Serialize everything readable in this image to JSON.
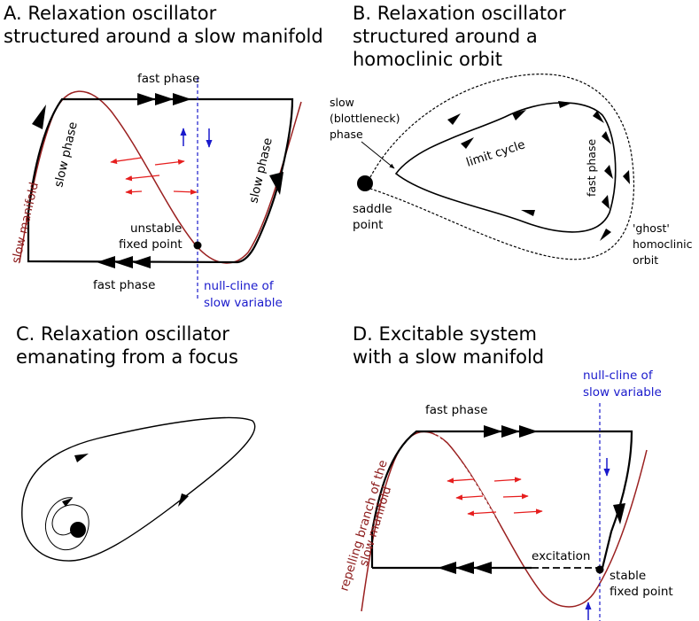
{
  "colors": {
    "manifold": "#9a2020",
    "nullcline": "#1a1acc",
    "flow_arrow": "#e61e1e",
    "trajectory": "#000000"
  },
  "panelA": {
    "title_line1": "A. Relaxation oscillator",
    "title_line2": "structured around a slow manifold",
    "fast_phase_top": "fast phase",
    "fast_phase_bottom": "fast phase",
    "slow_phase_left": "slow phase",
    "slow_phase_right": "slow phase",
    "slow_manifold": "slow manifold",
    "unstable_line1": "unstable",
    "unstable_line2": "fixed point",
    "nullcline_line1": "null-cline of",
    "nullcline_line2": "slow variable"
  },
  "panelB": {
    "title_line1": "B. Relaxation oscillator",
    "title_line2": "structured around a",
    "title_line3": "homoclinic orbit",
    "slow_line1": "slow",
    "slow_line2": "(blottleneck)",
    "slow_line3": "phase",
    "limit_cycle": "limit cycle",
    "fast_phase": "fast phase",
    "saddle_line1": "saddle",
    "saddle_line2": "point",
    "ghost_line1": "'ghost'",
    "ghost_line2": "homoclinic",
    "ghost_line3": "orbit"
  },
  "panelC": {
    "title_line1": "C. Relaxation oscillator",
    "title_line2": "emanating from a focus"
  },
  "panelD": {
    "title_line1": "D. Excitable system",
    "title_line2": "with a slow manifold",
    "fast_phase": "fast phase",
    "nullcline_line1": "null-cline of",
    "nullcline_line2": "slow variable",
    "repelling_line1": "repelling branch of the",
    "repelling_line2": "slow manifold",
    "excitation": "excitation",
    "stable_line1": "stable",
    "stable_line2": "fixed point"
  }
}
